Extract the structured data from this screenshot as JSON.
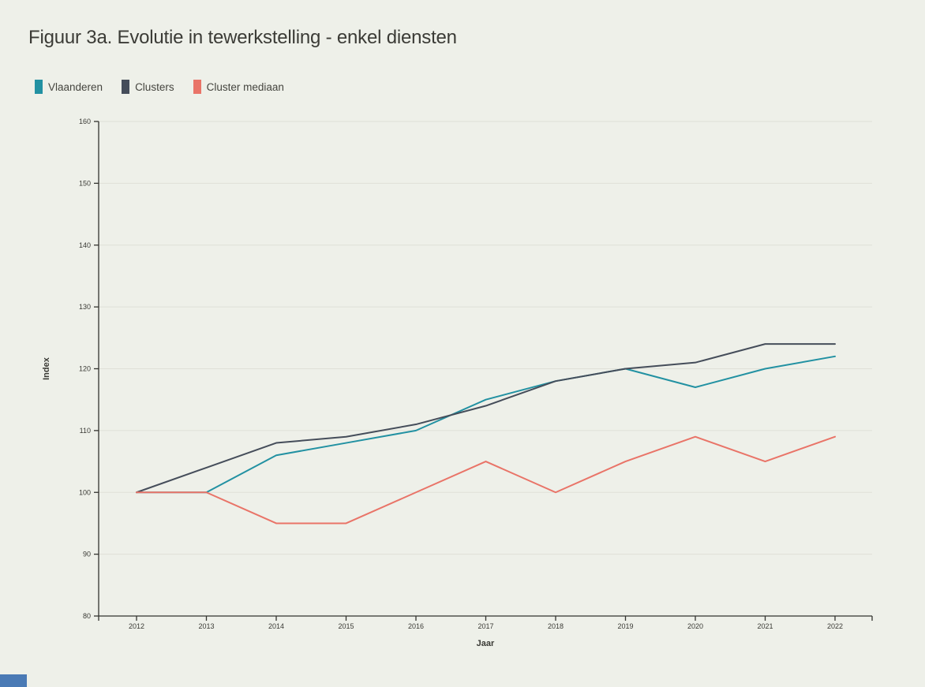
{
  "title": "Figuur 3a. Evolutie in tewerkstelling - enkel diensten",
  "legend": [
    {
      "label": "Vlaanderen",
      "color": "#2291a2"
    },
    {
      "label": "Clusters",
      "color": "#454d5a"
    },
    {
      "label": "Cluster mediaan",
      "color": "#e97468"
    }
  ],
  "colors": {
    "background": "#eef0e9",
    "gridline": "#dfe0d8",
    "axis": "#33332f",
    "tick_text": "#3a3a35",
    "brand_blue": "#4a7ab5"
  },
  "chart_data": {
    "type": "line",
    "title": "Figuur 3a. Evolutie in tewerkstelling - enkel diensten",
    "x": [
      2012,
      2013,
      2014,
      2015,
      2016,
      2017,
      2018,
      2019,
      2020,
      2021,
      2022
    ],
    "series": [
      {
        "name": "Vlaanderen",
        "color": "#2291a2",
        "values": [
          100,
          100,
          106,
          108,
          110,
          115,
          118,
          120,
          117,
          120,
          122
        ]
      },
      {
        "name": "Clusters",
        "color": "#454d5a",
        "values": [
          100,
          104,
          108,
          109,
          111,
          114,
          118,
          120,
          121,
          124,
          124
        ]
      },
      {
        "name": "Cluster mediaan",
        "color": "#e97468",
        "values": [
          100,
          100,
          95,
          95,
          100,
          105,
          100,
          105,
          109,
          105,
          109
        ]
      }
    ],
    "xlabel": "Jaar",
    "ylabel": "Index",
    "ylim": [
      80,
      160
    ],
    "yticks": [
      80,
      90,
      100,
      110,
      120,
      130,
      140,
      150,
      160
    ],
    "grid": true,
    "legend_position": "top-left"
  }
}
